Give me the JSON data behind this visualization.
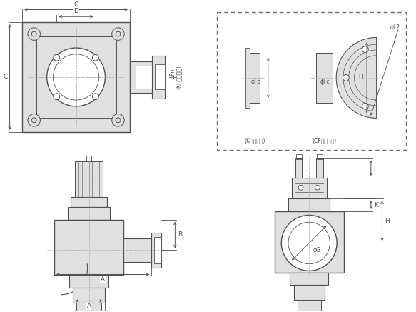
{
  "bg_color": "#ffffff",
  "line_color": "#505050",
  "dim_color": "#505050",
  "light_gray": "#e0e0e0",
  "mid_gray": "#c8c8c8",
  "dashed_box_color": "#707070",
  "labels": {
    "C_top": "C",
    "D": "D",
    "C_left": "C",
    "Fn": "ϕFn",
    "KF": "(KFフランジ)",
    "Fd": "ϕFd",
    "Fc": "ϕFc",
    "L1": "L1",
    "L2": "ϕL2",
    "Kflange": "(Kフランジ)",
    "CFflange": "(CFフランジ)",
    "A_bottom": "A",
    "A_horiz": "A",
    "B": "B",
    "G": "ϕG",
    "J": "J",
    "K": "K",
    "H": "H"
  }
}
